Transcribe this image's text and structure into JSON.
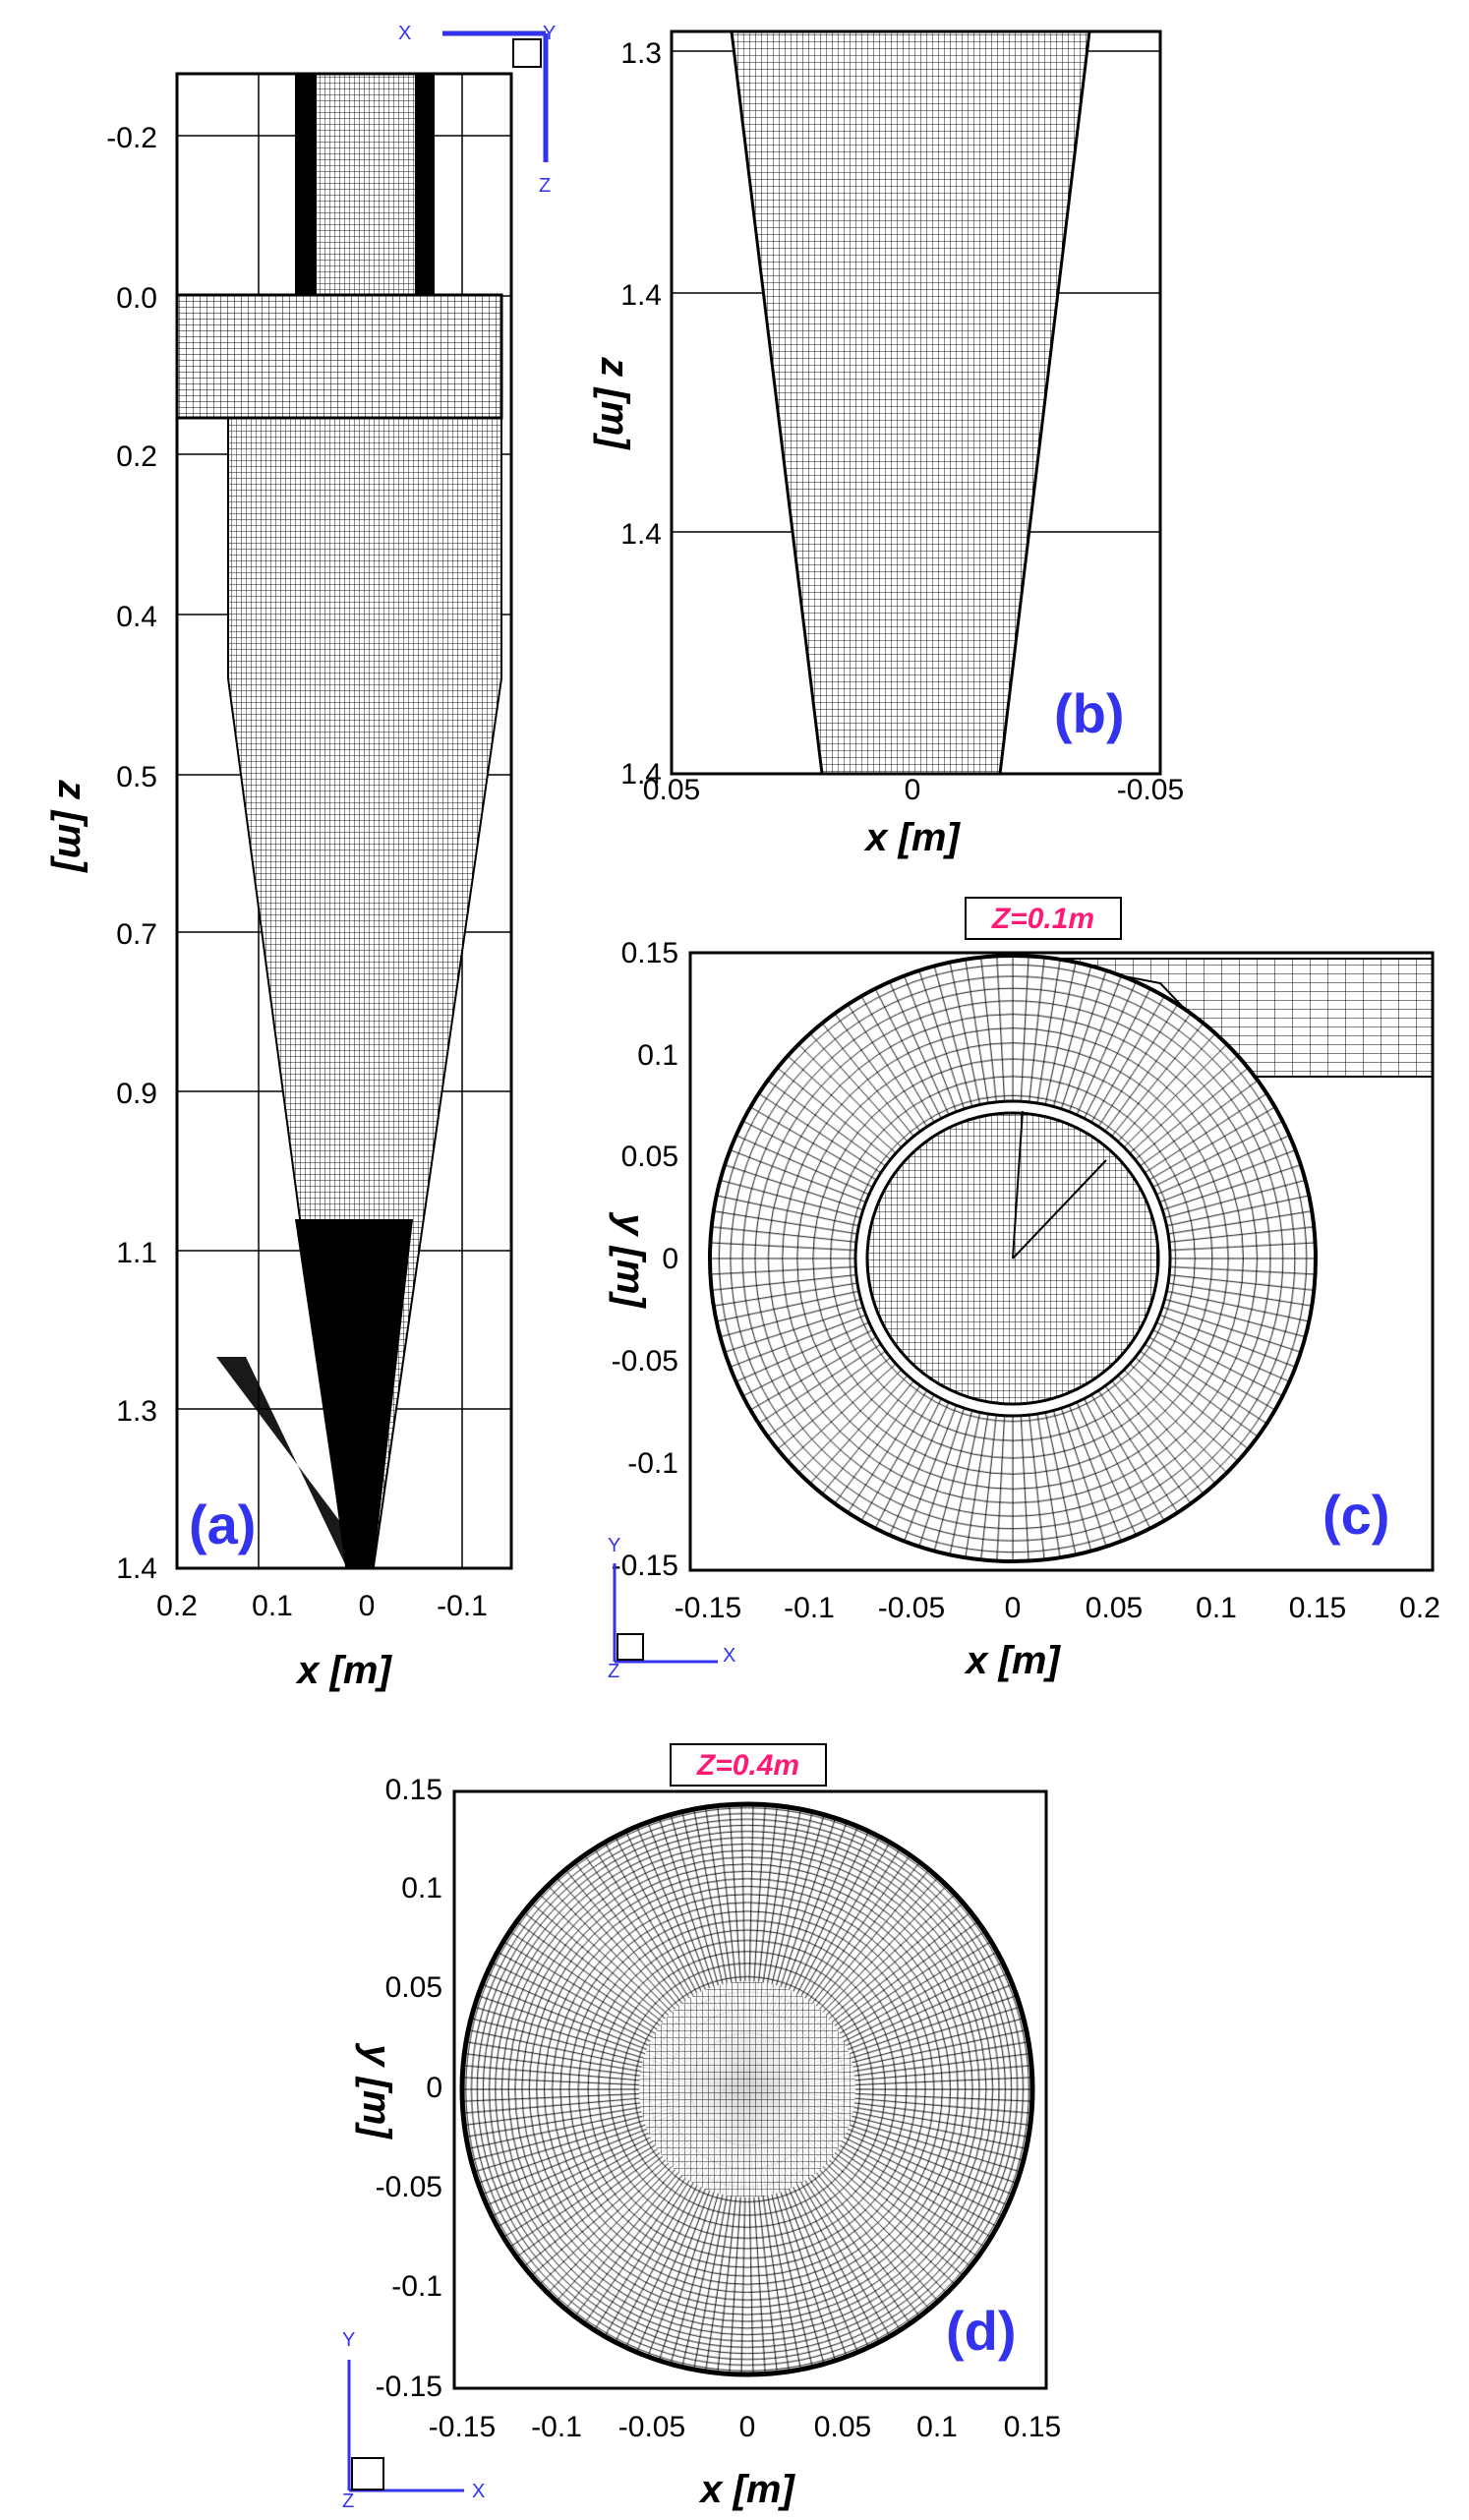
{
  "colors": {
    "mesh": "#000000",
    "panel_letter": "#3333ee",
    "axes_triad": "#3333ee",
    "section_label": "#ff1a75"
  },
  "panels": {
    "a": {
      "letter": "(a)",
      "xlabel": "x [m]",
      "ylabel": "z [m]",
      "xticks": [
        "0.2",
        "0.1",
        "0",
        "-0.1"
      ],
      "yticks": [
        "-0.2",
        "0.0",
        "0.2",
        "0.4",
        "0.5",
        "0.7",
        "0.9",
        "1.1",
        "1.3",
        "1.4"
      ],
      "triad": {
        "h": "X",
        "h2": "Y",
        "v": "Z"
      }
    },
    "b": {
      "letter": "(b)",
      "xlabel": "x [m]",
      "ylabel": "z [m]",
      "xticks": [
        "0.05",
        "0",
        "-0.05"
      ],
      "yticks": [
        "1.3",
        "1.4",
        "1.4",
        "1.4"
      ]
    },
    "c": {
      "letter": "(c)",
      "section": "Z=0.1m",
      "xlabel": "x [m]",
      "ylabel": "y [m]",
      "xticks": [
        "-0.15",
        "-0.1",
        "-0.05",
        "0",
        "0.05",
        "0.1",
        "0.15",
        "0.2"
      ],
      "yticks": [
        "0.15",
        "0.1",
        "0.05",
        "0",
        "-0.05",
        "-0.1",
        "-0.15"
      ],
      "triad": {
        "v": "Y",
        "h": "X",
        "o": "Z"
      }
    },
    "d": {
      "letter": "(d)",
      "section": "Z=0.4m",
      "xlabel": "x [m]",
      "ylabel": "y [m]",
      "xticks": [
        "-0.15",
        "-0.1",
        "-0.05",
        "0",
        "0.05",
        "0.1",
        "0.15"
      ],
      "yticks": [
        "0.15",
        "0.1",
        "0.05",
        "0",
        "-0.05",
        "-0.1",
        "-0.15"
      ],
      "triad": {
        "v": "Y",
        "h": "X",
        "o": "Z"
      }
    }
  }
}
